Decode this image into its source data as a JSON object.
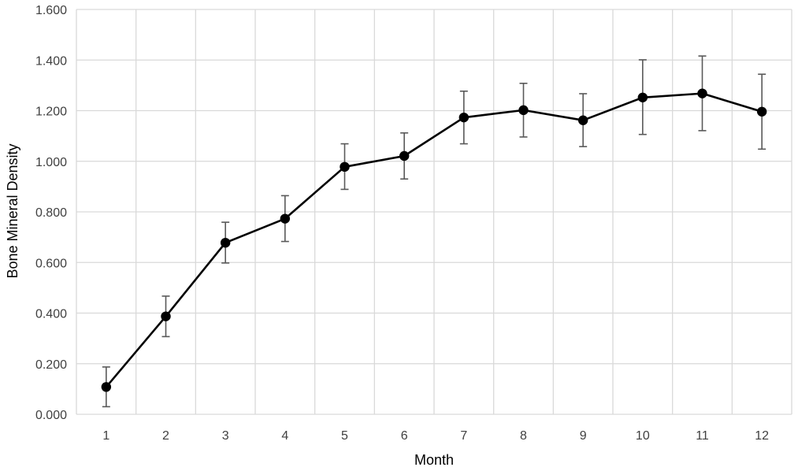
{
  "chart_data": {
    "type": "line",
    "title": "",
    "xlabel": "Month",
    "ylabel": "Bone Mineral Density",
    "ylim": [
      0,
      1.6
    ],
    "y_ticks": [
      "0.000",
      "0.200",
      "0.400",
      "0.600",
      "0.800",
      "1.000",
      "1.200",
      "1.400",
      "1.600"
    ],
    "categories": [
      "1",
      "2",
      "3",
      "4",
      "5",
      "6",
      "7",
      "8",
      "9",
      "10",
      "11",
      "12"
    ],
    "grid": true,
    "legend": "none",
    "series": [
      {
        "values": [
          0.108,
          0.387,
          0.678,
          0.773,
          0.978,
          1.021,
          1.173,
          1.202,
          1.162,
          1.252,
          1.268,
          1.196
        ],
        "error_high": [
          0.187,
          0.467,
          0.759,
          0.864,
          1.069,
          1.112,
          1.277,
          1.308,
          1.267,
          1.401,
          1.416,
          1.344
        ],
        "error_low": [
          0.03,
          0.307,
          0.598,
          0.683,
          0.889,
          0.93,
          1.069,
          1.096,
          1.058,
          1.106,
          1.121,
          1.048
        ],
        "color": "#000000"
      }
    ],
    "colors": {
      "gridline": "#d9d9d9",
      "errorbar": "#595959",
      "line": "#000000"
    }
  }
}
